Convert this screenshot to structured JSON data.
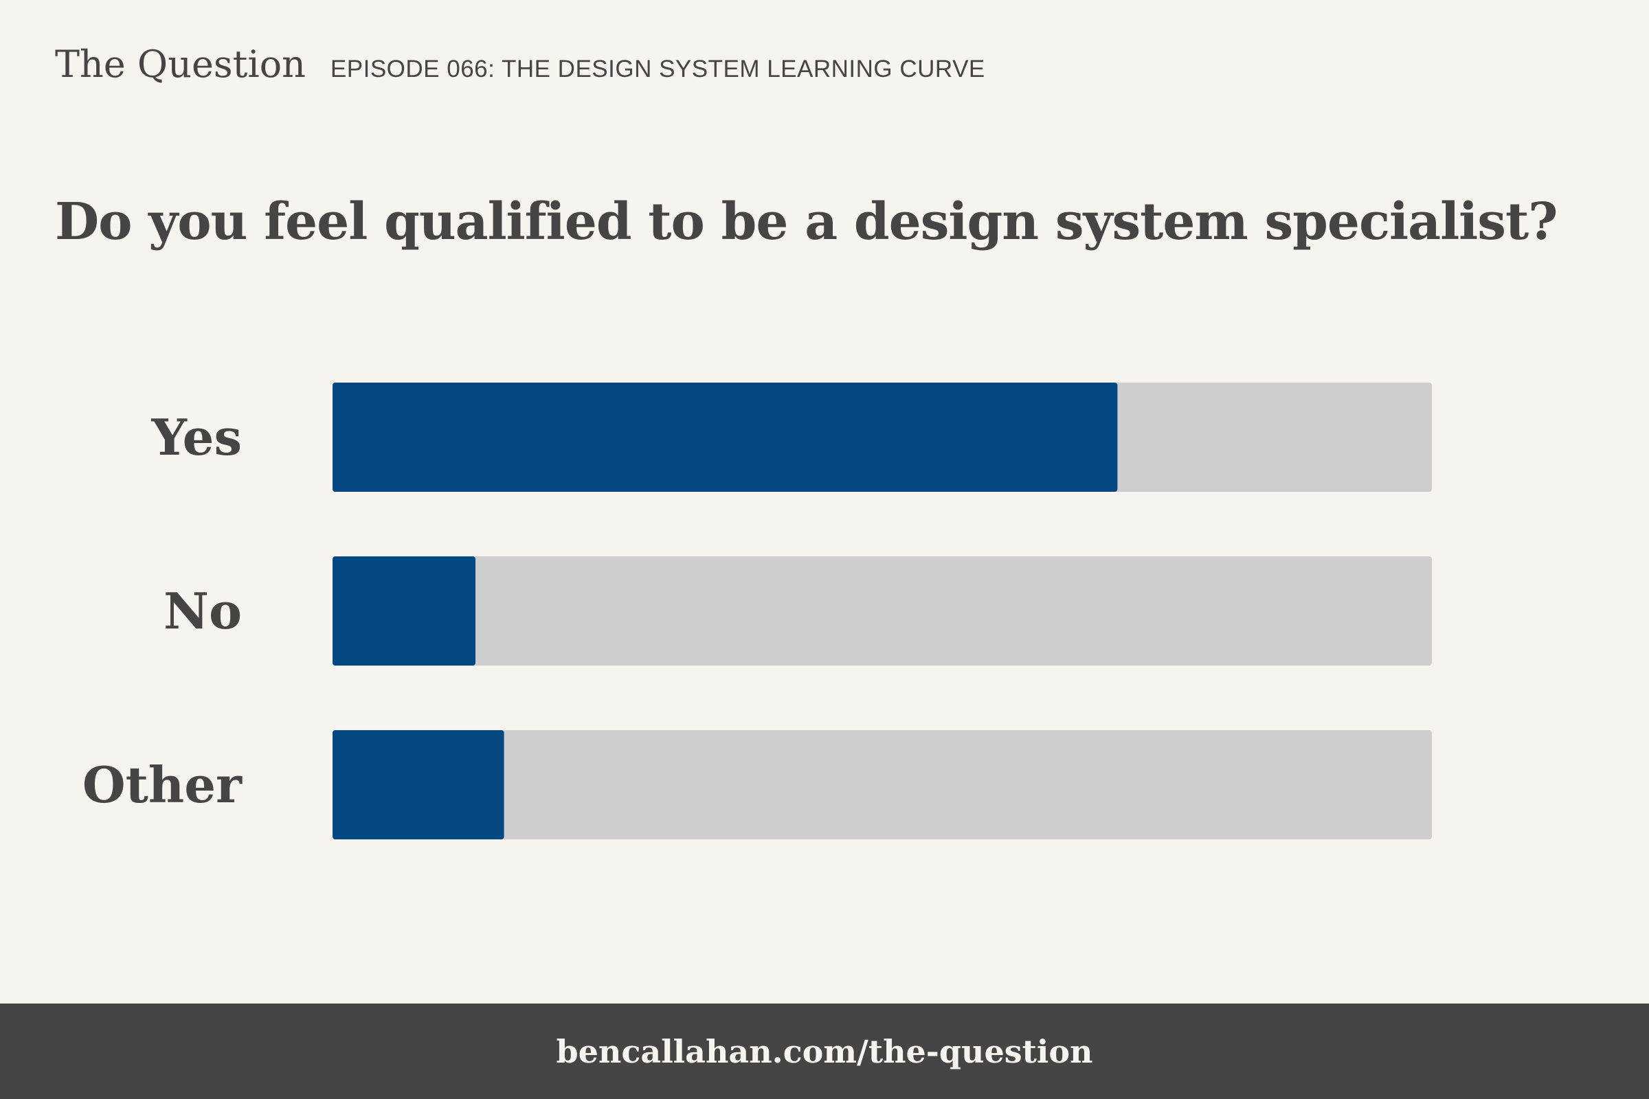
{
  "header": {
    "show_name": "The Question",
    "episode": "EPISODE 066: THE DESIGN SYSTEM LEARNING CURVE"
  },
  "footer": {
    "url": "bencallahan.com/the-question"
  },
  "colors": {
    "background": "#f7f3ee",
    "text": "#454545",
    "bar_fill": "#034882",
    "bar_track": "#cecece",
    "footer_bg": "#454545"
  },
  "chart_data": {
    "type": "bar",
    "orientation": "horizontal",
    "title": "Do you feel qualified to be a design system specialist?",
    "categories": [
      "Yes",
      "No",
      "Other"
    ],
    "values": [
      0.714,
      0.13,
      0.156
    ],
    "xlim": [
      0,
      1
    ],
    "grid": false,
    "legend": "none"
  }
}
